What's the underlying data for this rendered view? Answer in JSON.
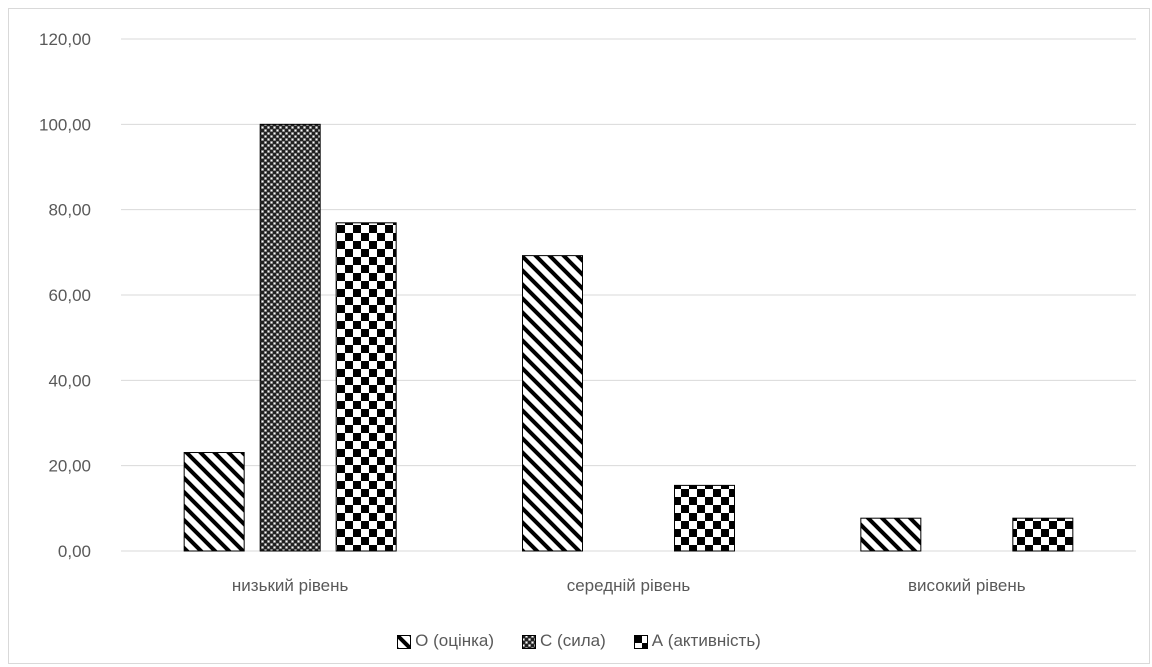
{
  "chart_data": {
    "type": "bar",
    "title": "",
    "xlabel": "",
    "ylabel": "",
    "ylim": [
      0,
      120
    ],
    "y_ticks": [
      "0,00",
      "20,00",
      "40,00",
      "60,00",
      "80,00",
      "100,00",
      "120,00"
    ],
    "categories": [
      "низький рівень",
      "середній рівень",
      "високий рівень"
    ],
    "series": [
      {
        "name": "О (оцінка)",
        "pattern": "diagonal-stripes",
        "values": [
          23.08,
          69.23,
          7.69
        ]
      },
      {
        "name": "С (сила)",
        "pattern": "fine-checker",
        "values": [
          100.0,
          0,
          0
        ]
      },
      {
        "name": "А (активність)",
        "pattern": "checkerboard",
        "values": [
          76.92,
          15.38,
          7.69
        ]
      }
    ],
    "grid": true,
    "legend_position": "bottom"
  },
  "colors": {
    "grid": "#d9d9d9",
    "text": "#595959",
    "bar_stroke": "#000000"
  }
}
